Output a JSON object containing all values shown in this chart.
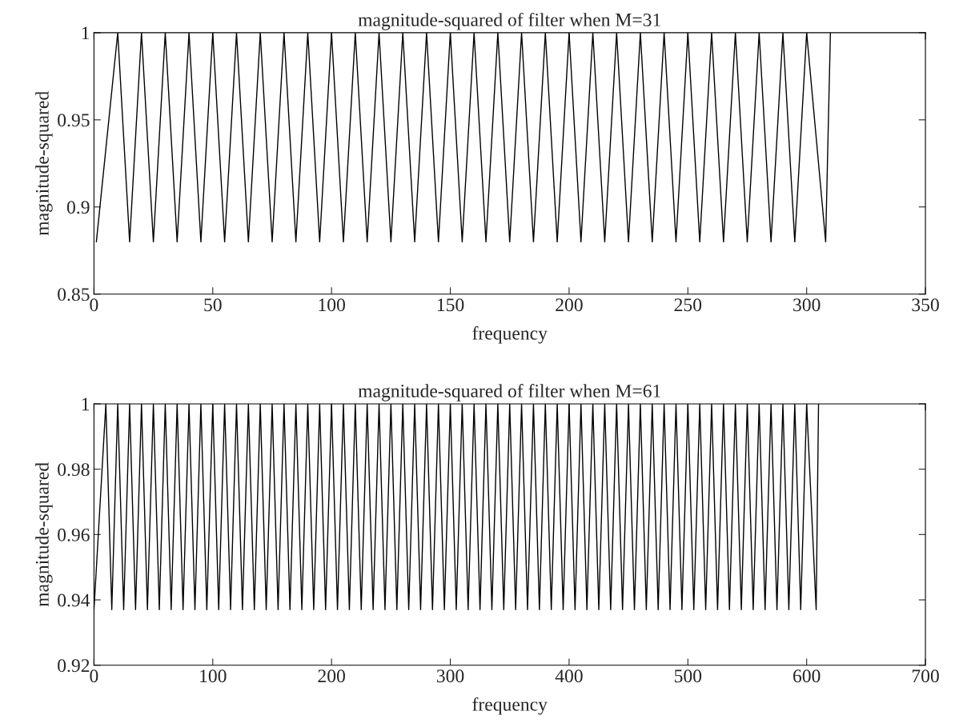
{
  "chart_data": [
    {
      "type": "line",
      "title": "magnitude-squared of filter when M=31",
      "xlabel": "frequency",
      "ylabel": "magnitude-squared",
      "xlim": [
        0,
        350
      ],
      "xticks": [
        0,
        50,
        100,
        150,
        200,
        250,
        300,
        350
      ],
      "ylim": [
        0.85,
        1
      ],
      "yticks": [
        0.85,
        0.9,
        0.95,
        1
      ],
      "series": [
        {
          "color": "#000000",
          "x": [
            1,
            10,
            15,
            20,
            25,
            30,
            35,
            40,
            45,
            50,
            55,
            60,
            65,
            70,
            75,
            80,
            85,
            90,
            95,
            100,
            105,
            110,
            115,
            120,
            125,
            130,
            135,
            140,
            145,
            150,
            155,
            160,
            165,
            170,
            175,
            180,
            185,
            190,
            195,
            200,
            205,
            210,
            215,
            220,
            225,
            230,
            235,
            240,
            245,
            250,
            255,
            260,
            265,
            270,
            275,
            280,
            285,
            290,
            295,
            300,
            308,
            310
          ],
          "values": [
            0.88,
            1,
            0.88,
            1,
            0.88,
            1,
            0.88,
            1,
            0.88,
            1,
            0.88,
            1,
            0.88,
            1,
            0.88,
            1,
            0.88,
            1,
            0.88,
            1,
            0.88,
            1,
            0.88,
            1,
            0.88,
            1,
            0.88,
            1,
            0.88,
            1,
            0.88,
            1,
            0.88,
            1,
            0.88,
            1,
            0.88,
            1,
            0.88,
            1,
            0.88,
            1,
            0.88,
            1,
            0.88,
            1,
            0.88,
            1,
            0.88,
            1,
            0.88,
            1,
            0.88,
            1,
            0.88,
            1,
            0.88,
            1,
            0.88,
            1,
            0.88,
            1
          ]
        }
      ]
    },
    {
      "type": "line",
      "title": "magnitude-squared of filter when M=61",
      "xlabel": "frequency",
      "ylabel": "magnitude-squared",
      "xlim": [
        0,
        700
      ],
      "xticks": [
        0,
        100,
        200,
        300,
        400,
        500,
        600,
        700
      ],
      "ylim": [
        0.92,
        1
      ],
      "yticks": [
        0.92,
        0.94,
        0.96,
        0.98,
        1
      ],
      "series": [
        {
          "color": "#000000",
          "x": [
            0,
            10,
            15,
            20,
            25,
            30,
            35,
            40,
            45,
            50,
            55,
            60,
            65,
            70,
            75,
            80,
            85,
            90,
            95,
            100,
            105,
            110,
            115,
            120,
            125,
            130,
            135,
            140,
            145,
            150,
            155,
            160,
            165,
            170,
            175,
            180,
            185,
            190,
            195,
            200,
            205,
            210,
            215,
            220,
            225,
            230,
            235,
            240,
            245,
            250,
            255,
            260,
            265,
            270,
            275,
            280,
            285,
            290,
            295,
            300,
            305,
            310,
            315,
            320,
            325,
            330,
            335,
            340,
            345,
            350,
            355,
            360,
            365,
            370,
            375,
            380,
            385,
            390,
            395,
            400,
            405,
            410,
            415,
            420,
            425,
            430,
            435,
            440,
            445,
            450,
            455,
            460,
            465,
            470,
            475,
            480,
            485,
            490,
            495,
            500,
            505,
            510,
            515,
            520,
            525,
            530,
            535,
            540,
            545,
            550,
            555,
            560,
            565,
            570,
            575,
            580,
            585,
            590,
            595,
            600,
            608,
            610
          ],
          "values": [
            0.937,
            1,
            0.937,
            1,
            0.937,
            1,
            0.937,
            1,
            0.937,
            1,
            0.937,
            1,
            0.937,
            1,
            0.937,
            1,
            0.937,
            1,
            0.937,
            1,
            0.937,
            1,
            0.937,
            1,
            0.937,
            1,
            0.937,
            1,
            0.937,
            1,
            0.937,
            1,
            0.937,
            1,
            0.937,
            1,
            0.937,
            1,
            0.937,
            1,
            0.937,
            1,
            0.937,
            1,
            0.937,
            1,
            0.937,
            1,
            0.937,
            1,
            0.937,
            1,
            0.937,
            1,
            0.937,
            1,
            0.937,
            1,
            0.937,
            1,
            0.937,
            1,
            0.937,
            1,
            0.937,
            1,
            0.937,
            1,
            0.937,
            1,
            0.937,
            1,
            0.937,
            1,
            0.937,
            1,
            0.937,
            1,
            0.937,
            1,
            0.937,
            1,
            0.937,
            1,
            0.937,
            1,
            0.937,
            1,
            0.937,
            1,
            0.937,
            1,
            0.937,
            1,
            0.937,
            1,
            0.937,
            1,
            0.937,
            1,
            0.937,
            1,
            0.937,
            1,
            0.937,
            1,
            0.937,
            1,
            0.937,
            1,
            0.937,
            1,
            0.937,
            1,
            0.937,
            1,
            0.937,
            1,
            0.937,
            1,
            0.937,
            1
          ]
        }
      ]
    }
  ]
}
